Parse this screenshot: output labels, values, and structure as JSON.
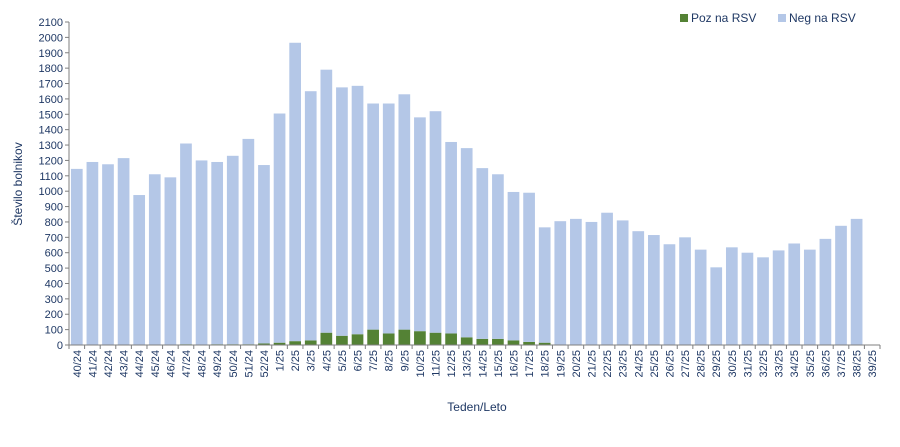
{
  "chart_data": {
    "type": "bar",
    "stacked": true,
    "xlabel": "Teden/Leto",
    "ylabel": "Število bolnikov",
    "ylim": [
      0,
      2100
    ],
    "ytick_step": 100,
    "grid": false,
    "legend_position": "top-right",
    "categories": [
      "40/24",
      "41/24",
      "42/24",
      "43/24",
      "44/24",
      "45/24",
      "46/24",
      "47/24",
      "48/24",
      "49/24",
      "50/24",
      "51/24",
      "52/24",
      "1/25",
      "2/25",
      "3/25",
      "4/25",
      "5/25",
      "6/25",
      "7/25",
      "8/25",
      "9/25",
      "10/25",
      "11/25",
      "12/25",
      "13/25",
      "14/25",
      "15/25",
      "16/25",
      "17/25",
      "18/25",
      "19/25",
      "20/25",
      "21/25",
      "22/25",
      "23/25",
      "24/25",
      "25/25",
      "26/25",
      "27/25",
      "28/25",
      "29/25",
      "30/25",
      "31/25",
      "32/25",
      "33/25",
      "34/25",
      "35/25",
      "36/25",
      "37/25",
      "38/25",
      "39/25"
    ],
    "series": [
      {
        "name": "Poz na RSV",
        "color": "#548235",
        "values": [
          0,
          0,
          0,
          0,
          0,
          0,
          0,
          5,
          0,
          5,
          5,
          5,
          10,
          15,
          25,
          30,
          80,
          60,
          70,
          100,
          75,
          100,
          90,
          80,
          75,
          50,
          40,
          40,
          30,
          20,
          15,
          0,
          0,
          0,
          0,
          0,
          0,
          0,
          0,
          0,
          0,
          0,
          0,
          0,
          0,
          0,
          0,
          0,
          0,
          0,
          0,
          0
        ]
      },
      {
        "name": "Neg na RSV",
        "color": "#b4c7e7",
        "values": [
          1145,
          1190,
          1175,
          1215,
          975,
          1110,
          1090,
          1305,
          1200,
          1185,
          1225,
          1335,
          1160,
          1490,
          1940,
          1620,
          1710,
          1615,
          1615,
          1470,
          1495,
          1530,
          1390,
          1440,
          1245,
          1230,
          1110,
          1070,
          965,
          970,
          750,
          805,
          820,
          800,
          860,
          810,
          740,
          715,
          655,
          700,
          620,
          505,
          635,
          600,
          570,
          615,
          660,
          620,
          690,
          775,
          820,
          0
        ]
      }
    ]
  }
}
